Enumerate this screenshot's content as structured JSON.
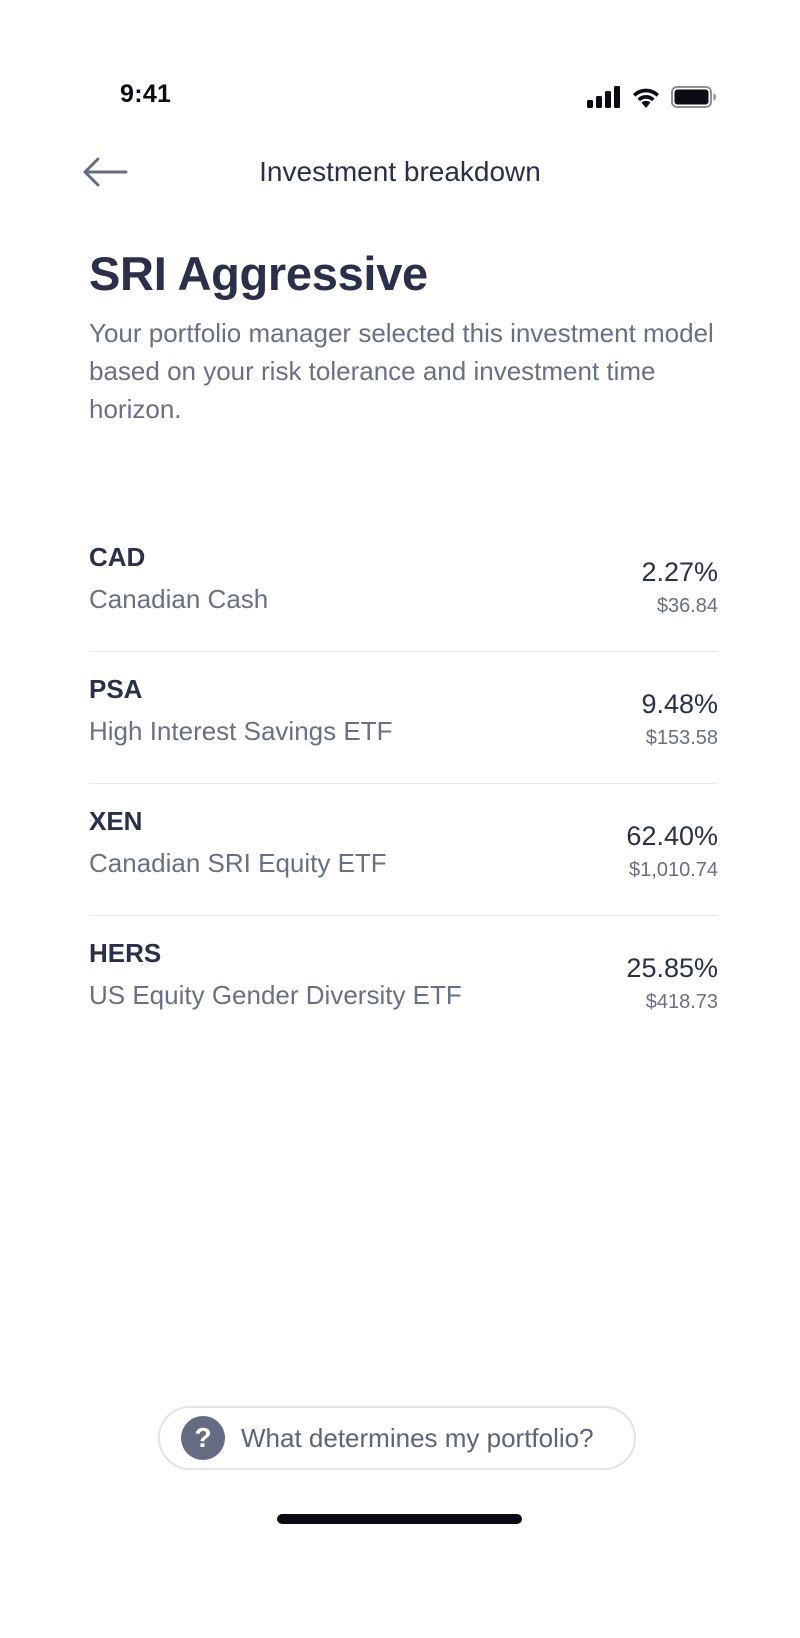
{
  "status_bar": {
    "time": "9:41",
    "icons": [
      "cellular-signal-icon",
      "wifi-icon",
      "battery-icon"
    ]
  },
  "nav": {
    "title": "Investment breakdown",
    "back_icon": "arrow-left-icon"
  },
  "portfolio": {
    "title": "SRI Aggressive",
    "description": "Your portfolio manager selected this investment model based on your risk tolerance and investment time horizon."
  },
  "holdings": [
    {
      "symbol": "CAD",
      "name": "Canadian Cash",
      "percent": "2.27%",
      "amount": "$36.84"
    },
    {
      "symbol": "PSA",
      "name": "High Interest Savings ETF",
      "percent": "9.48%",
      "amount": "$153.58"
    },
    {
      "symbol": "XEN",
      "name": "Canadian SRI Equity ETF",
      "percent": "62.40%",
      "amount": "$1,010.74"
    },
    {
      "symbol": "HERS",
      "name": "US Equity Gender Diversity ETF",
      "percent": "25.85%",
      "amount": "$418.73"
    }
  ],
  "help": {
    "icon": "question-mark-icon",
    "icon_glyph": "?",
    "label": "What determines my portfolio?"
  },
  "colors": {
    "primary_text": "#2b2f4a",
    "secondary_text": "#6b6f86",
    "divider": "#e7e8ee",
    "help_icon_bg": "#666b84"
  }
}
